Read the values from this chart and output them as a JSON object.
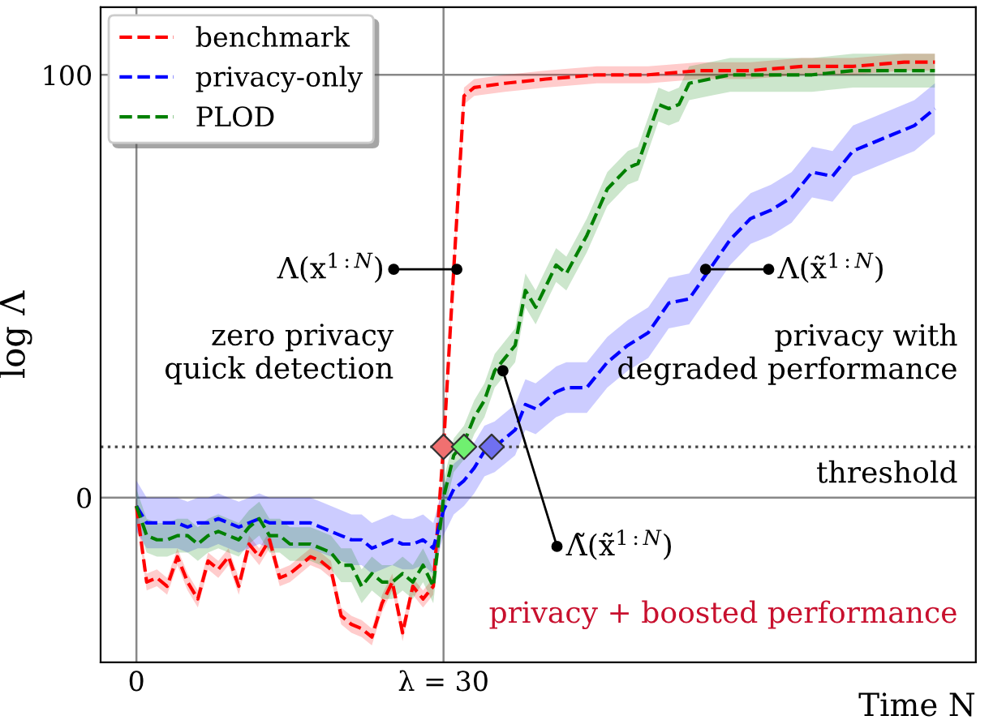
{
  "chart_data": {
    "type": "line",
    "xlabel": "Time N",
    "ylabel": "log Λ",
    "xlim": [
      -3.5,
      82
    ],
    "ylim": [
      -39,
      116
    ],
    "xticks": [
      0,
      {
        "value": 30,
        "label": "λ = 30"
      }
    ],
    "yticks": [
      0,
      100
    ],
    "grid": true,
    "legend": "top left",
    "line_style": "dashed",
    "marker": "none",
    "series": [
      {
        "name": "benchmark",
        "color": "#ff0000",
        "x": [
          0,
          1,
          2,
          3,
          4,
          5,
          6,
          7,
          8,
          9,
          10,
          11,
          12,
          13,
          14,
          15,
          16,
          17,
          18,
          19,
          20,
          21,
          22,
          23,
          24,
          25,
          26,
          27,
          28,
          29,
          30,
          31,
          32,
          33,
          36,
          40,
          45,
          50,
          55,
          60,
          65,
          70,
          75,
          78
        ],
        "values": [
          -2,
          -20,
          -19,
          -21,
          -14,
          -20,
          -24,
          -15,
          -17,
          -14,
          -21,
          -11,
          -14,
          -10,
          -19,
          -18,
          -16,
          -14,
          -15,
          -17,
          -28,
          -30,
          -31,
          -33,
          -25,
          -20,
          -32,
          -21,
          -24,
          -21,
          12,
          54,
          95,
          97,
          98,
          99,
          100,
          100,
          101,
          101,
          102,
          102,
          103,
          103
        ],
        "lower": [
          -4,
          -22,
          -21,
          -23,
          -16,
          -22,
          -26,
          -17,
          -19,
          -16,
          -23,
          -13,
          -16,
          -12,
          -21,
          -20,
          -18,
          -16,
          -17,
          -19,
          -30,
          -32,
          -33,
          -35,
          -27,
          -22,
          -34,
          -23,
          -26,
          -23,
          10,
          52,
          93,
          95,
          96,
          97,
          98,
          98,
          99,
          99,
          100,
          100,
          101,
          101
        ],
        "upper": [
          0,
          -18,
          -17,
          -19,
          -12,
          -18,
          -22,
          -13,
          -15,
          -12,
          -19,
          -9,
          -12,
          -8,
          -17,
          -16,
          -14,
          -12,
          -13,
          -15,
          -26,
          -28,
          -29,
          -31,
          -23,
          -18,
          -30,
          -19,
          -22,
          -19,
          14,
          56,
          97,
          99,
          100,
          101,
          102,
          102,
          103,
          103,
          104,
          104,
          105,
          105
        ]
      },
      {
        "name": "privacy-only",
        "color": "#0000ff",
        "x": [
          0,
          1,
          2,
          3,
          4,
          5,
          6,
          7,
          8,
          9,
          10,
          11,
          12,
          13,
          14,
          15,
          16,
          17,
          18,
          19,
          20,
          21,
          22,
          23,
          24,
          25,
          26,
          27,
          28,
          29,
          30,
          31,
          32,
          33,
          34,
          35,
          36,
          37,
          38,
          39,
          40,
          41,
          42,
          44,
          46,
          48,
          50,
          52,
          54,
          56,
          58,
          60,
          62,
          64,
          66,
          68,
          70,
          72,
          74,
          76,
          78
        ],
        "values": [
          -2,
          -6,
          -6,
          -6,
          -6,
          -7,
          -6,
          -6,
          -5,
          -6,
          -7,
          -6,
          -5,
          -6,
          -6,
          -6,
          -6,
          -6,
          -7,
          -8,
          -9,
          -10,
          -10,
          -12,
          -11,
          -10,
          -11,
          -11,
          -10,
          -12,
          -3,
          2,
          4,
          7,
          11,
          12,
          14,
          16,
          22,
          21,
          23,
          25,
          26,
          26,
          32,
          36,
          39,
          46,
          47,
          54,
          61,
          66,
          68,
          71,
          77,
          76,
          82,
          84,
          86,
          88,
          92
        ],
        "lower": [
          -8,
          -12,
          -12,
          -12,
          -12,
          -13,
          -12,
          -12,
          -11,
          -12,
          -13,
          -12,
          -11,
          -12,
          -12,
          -12,
          -12,
          -12,
          -13,
          -14,
          -15,
          -16,
          -16,
          -18,
          -17,
          -16,
          -17,
          -17,
          -16,
          -18,
          -9,
          -4,
          -2,
          1,
          5,
          6,
          8,
          10,
          16,
          15,
          17,
          19,
          20,
          20,
          26,
          30,
          33,
          40,
          41,
          48,
          55,
          60,
          62,
          65,
          71,
          70,
          76,
          78,
          80,
          82,
          86
        ],
        "upper": [
          4,
          0,
          0,
          0,
          0,
          -1,
          0,
          0,
          1,
          0,
          -1,
          0,
          1,
          0,
          0,
          0,
          0,
          0,
          -1,
          -2,
          -3,
          -4,
          -4,
          -6,
          -5,
          -4,
          -5,
          -5,
          -4,
          -6,
          3,
          8,
          10,
          13,
          17,
          18,
          20,
          22,
          28,
          27,
          29,
          31,
          32,
          32,
          38,
          42,
          45,
          52,
          53,
          60,
          67,
          72,
          74,
          77,
          83,
          82,
          88,
          90,
          92,
          94,
          98
        ]
      },
      {
        "name": "PLOD",
        "color": "#008000",
        "x": [
          0,
          1,
          2,
          3,
          4,
          5,
          6,
          7,
          8,
          9,
          10,
          11,
          12,
          13,
          14,
          15,
          16,
          17,
          18,
          19,
          20,
          21,
          22,
          23,
          24,
          25,
          26,
          27,
          28,
          29,
          30,
          31,
          32,
          33,
          34,
          35,
          36,
          37,
          38,
          39,
          40,
          41,
          42,
          44,
          46,
          48,
          49,
          51,
          52,
          53,
          54,
          56,
          58,
          62,
          66,
          70,
          74,
          78
        ],
        "values": [
          -2,
          -9,
          -10,
          -10,
          -9,
          -9,
          -11,
          -9,
          -8,
          -9,
          -10,
          -7,
          -5,
          -9,
          -9,
          -11,
          -11,
          -11,
          -12,
          -13,
          -16,
          -16,
          -21,
          -18,
          -20,
          -20,
          -18,
          -20,
          -16,
          -21,
          0,
          10,
          13,
          19,
          23,
          30,
          33,
          36,
          49,
          45,
          50,
          55,
          53,
          62,
          73,
          78,
          79,
          93,
          92,
          93,
          98,
          99,
          100,
          100,
          100,
          101,
          101,
          101
        ],
        "lower": [
          -6,
          -13,
          -14,
          -14,
          -13,
          -13,
          -15,
          -13,
          -12,
          -13,
          -14,
          -11,
          -9,
          -13,
          -13,
          -15,
          -15,
          -15,
          -16,
          -17,
          -20,
          -20,
          -25,
          -22,
          -24,
          -24,
          -22,
          -24,
          -20,
          -25,
          -4,
          6,
          9,
          15,
          19,
          26,
          29,
          32,
          45,
          41,
          46,
          51,
          49,
          58,
          69,
          74,
          75,
          89,
          88,
          89,
          94,
          95,
          96,
          96,
          96,
          97,
          97,
          97
        ],
        "upper": [
          2,
          -5,
          -6,
          -6,
          -5,
          -5,
          -7,
          -5,
          -4,
          -5,
          -6,
          -3,
          -1,
          -5,
          -5,
          -7,
          -7,
          -7,
          -8,
          -9,
          -12,
          -12,
          -17,
          -14,
          -16,
          -16,
          -14,
          -16,
          -12,
          -17,
          4,
          14,
          17,
          23,
          27,
          34,
          37,
          40,
          53,
          49,
          54,
          59,
          57,
          66,
          77,
          82,
          83,
          97,
          96,
          97,
          102,
          103,
          104,
          104,
          104,
          105,
          105,
          105
        ]
      },
      {
        "type": "scatter",
        "marker": "diamond",
        "x": [
          30,
          32,
          34.7
        ],
        "values": [
          12,
          12,
          12
        ],
        "colors": [
          "#f07070",
          "#70f070",
          "#7070f0"
        ]
      }
    ],
    "ref_lines": [
      {
        "axis": "y",
        "value": 12,
        "label": "threshold",
        "color": "#444444",
        "line_style": "dotted"
      }
    ],
    "annotations": [
      {
        "text": "Λ(x$^{1:N}$)",
        "x": 31.3,
        "y": 54
      },
      "zero privacy\nquick detection",
      {
        "text": "Λ(x̃$^{1:N}$)",
        "x": 55.6,
        "y": 54
      },
      "privacy with\ndegraded performance",
      {
        "text": "Λ̃(x̃$^{1:N}$)",
        "x": 35.8,
        "y": 30
      },
      "privacy + boosted performance"
    ]
  }
}
